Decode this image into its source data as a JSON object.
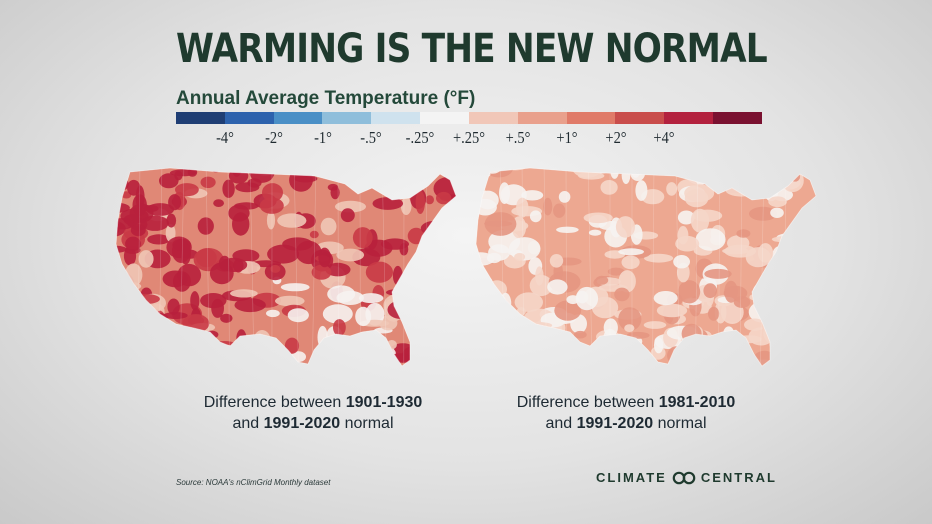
{
  "title": "WARMING IS THE NEW NORMAL",
  "subtitle": "Annual Average Temperature (°F)",
  "legend": {
    "colors": [
      "#1f3e74",
      "#2d62ad",
      "#4a8fc6",
      "#8fbedb",
      "#cfe2ee",
      "#f4f4f4",
      "#f1c7b8",
      "#e9a08c",
      "#e07a68",
      "#c94d4b",
      "#b3213e",
      "#7a1130"
    ],
    "ticks": [
      "-4°",
      "-2°",
      "-1°",
      "-.5°",
      "-.25°",
      "+.25°",
      "+.5°",
      "+1°",
      "+2°",
      "+4°"
    ]
  },
  "maps": [
    {
      "caption_line1_prefix": "Difference between ",
      "caption_line1_bold": "1901-1930",
      "caption_line2_bold": "1991-2020",
      "caption_line2_suffix": " normal",
      "base_color": "#e08876",
      "patches": [
        "#b8203c",
        "#c93a46",
        "#f0c6b6",
        "#f6f2f0"
      ]
    },
    {
      "caption_line1_prefix": "Difference between ",
      "caption_line1_bold": "1981-2010",
      "caption_line2_bold": "1991-2020",
      "caption_line2_suffix": " normal",
      "base_color": "#eda891",
      "patches": [
        "#f5d6c9",
        "#f6f3f1",
        "#e49682"
      ]
    }
  ],
  "source": "Source: NOAA's nClimGrid Monthly dataset",
  "brand": {
    "left": "CLIMATE",
    "right": "CENTRAL"
  }
}
